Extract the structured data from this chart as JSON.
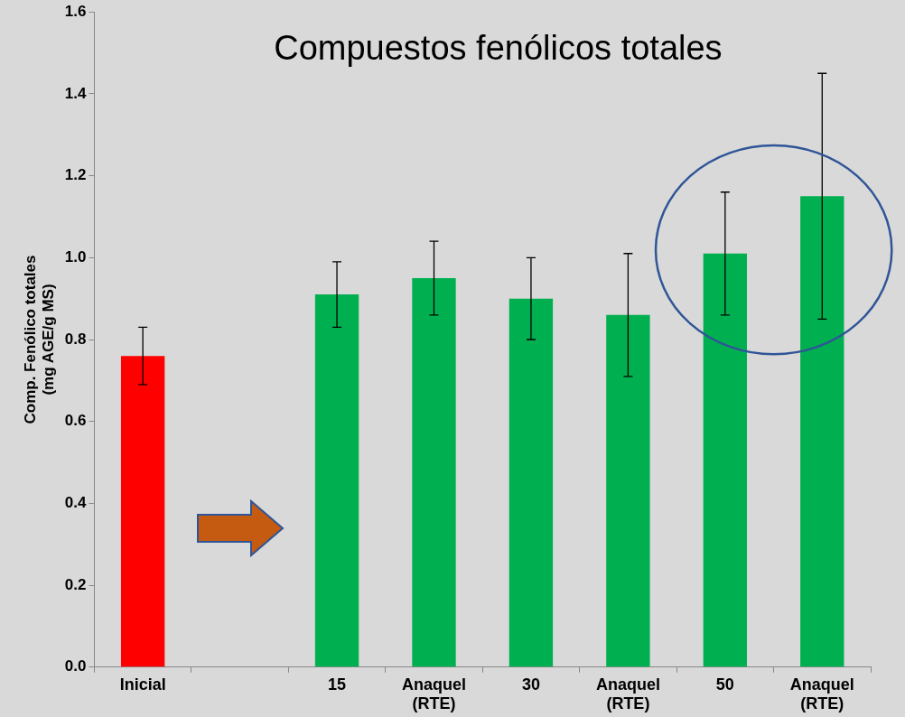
{
  "chart_data": {
    "type": "bar",
    "title": "Compuestos fenólicos totales",
    "ylabel": "Comp. Fenólico totales\n(mg AGE/g MS)",
    "categories": [
      "Inicial",
      null,
      "15",
      "Anaquel\n(RTE)",
      "30",
      "Anaquel\n(RTE)",
      "50",
      "Anaquel\n(RTE)"
    ],
    "values": [
      0.76,
      null,
      0.91,
      0.95,
      0.9,
      0.86,
      1.01,
      1.15
    ],
    "errors": [
      0.07,
      null,
      0.08,
      0.09,
      0.1,
      0.15,
      0.15,
      0.3
    ],
    "colors": [
      "#ff0000",
      "#00b050",
      "#00b050",
      "#00b050",
      "#00b050",
      "#00b050",
      "#00b050",
      "#00b050"
    ],
    "ylim": [
      0,
      1.6
    ],
    "yticks": [
      {
        "value": 0,
        "label": "0.0"
      },
      0.2,
      0.4,
      0.6,
      0.8,
      {
        "value": 1,
        "label": "1.0"
      },
      1.2,
      1.4,
      1.6
    ],
    "grid": false,
    "legend": false
  }
}
